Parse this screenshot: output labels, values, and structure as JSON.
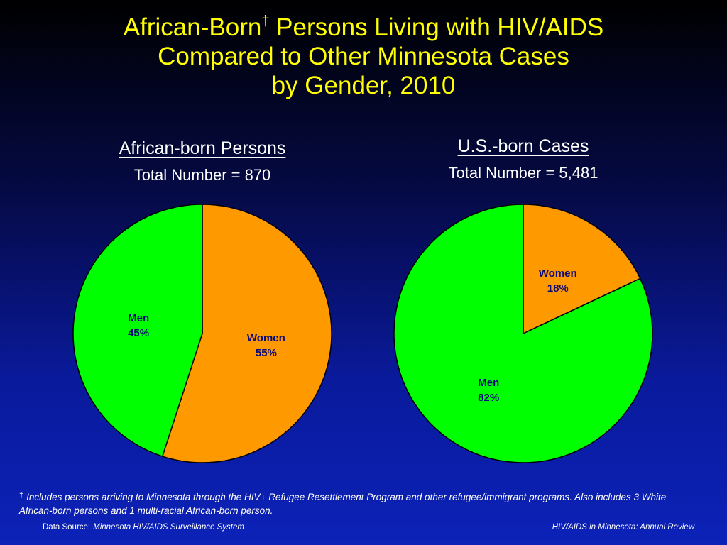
{
  "slide": {
    "title_line1_a": "African-Born",
    "title_dagger": "†",
    "title_line1_b": " Persons Living with HIV/AIDS",
    "title_line2": "Compared to Other Minnesota Cases",
    "title_line3": "by Gender, 2010"
  },
  "chart_data": [
    {
      "type": "pie",
      "title": "African-born Persons",
      "subtitle": "Total Number = 870",
      "slices": [
        {
          "label": "Women",
          "value": 55,
          "value_label": "55%",
          "color": "#ff9900"
        },
        {
          "label": "Men",
          "value": 45,
          "value_label": "45%",
          "color": "#00ff00"
        }
      ]
    },
    {
      "type": "pie",
      "title": "U.S.-born Cases",
      "subtitle": "Total Number = 5,481",
      "slices": [
        {
          "label": "Women",
          "value": 18,
          "value_label": "18%",
          "color": "#ff9900"
        },
        {
          "label": "Men",
          "value": 82,
          "value_label": "82%",
          "color": "#00ff00"
        }
      ]
    }
  ],
  "footer": {
    "dagger": "†",
    "footnote": "Includes persons arriving to Minnesota through the HIV+ Refugee Resettlement Program and other refugee/immigrant programs. Also includes 3 White African-born persons and 1 multi-racial African-born person.",
    "source_label": "Data Source:",
    "source_value": "Minnesota HIV/AIDS Surveillance System",
    "review": "HIV/AIDS in Minnesota: Annual Review"
  }
}
